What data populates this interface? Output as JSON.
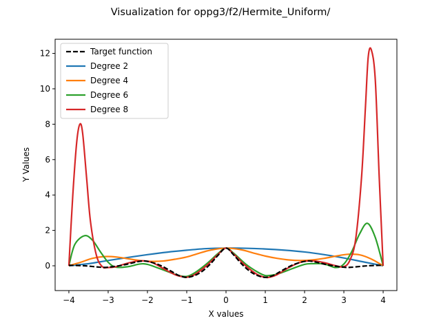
{
  "chart_data": {
    "type": "line",
    "title": "Visualization for oppg3/f2/Hermite_Uniform/",
    "xlabel": "X values",
    "ylabel": "Y Values",
    "xlim": [
      -4.35,
      4.35
    ],
    "ylim": [
      -1.4,
      12.8
    ],
    "xticks": [
      -4,
      -3,
      -2,
      -1,
      0,
      1,
      2,
      3,
      4
    ],
    "yticks": [
      0,
      2,
      4,
      6,
      8,
      10,
      12
    ],
    "grid": false,
    "legend_position": "upper-left",
    "series": [
      {
        "name": "Target function",
        "color": "#000000",
        "dash": "dashed",
        "x": [
          -4,
          -3.6,
          -3.2,
          -3,
          -2.6,
          -2.2,
          -2,
          -1.7,
          -1.4,
          -1.2,
          -1,
          -0.8,
          -0.6,
          -0.4,
          -0.2,
          0,
          0.2,
          0.4,
          0.6,
          0.8,
          1,
          1.2,
          1.4,
          1.7,
          2,
          2.2,
          2.6,
          3,
          3.2,
          3.6,
          4
        ],
        "y": [
          0.03,
          0.0,
          -0.08,
          -0.08,
          0.05,
          0.25,
          0.25,
          0.05,
          -0.3,
          -0.55,
          -0.65,
          -0.55,
          -0.3,
          0.1,
          0.6,
          1.0,
          0.6,
          0.1,
          -0.3,
          -0.55,
          -0.65,
          -0.55,
          -0.3,
          0.05,
          0.25,
          0.25,
          0.05,
          -0.08,
          -0.08,
          0.0,
          0.03
        ]
      },
      {
        "name": "Degree 2",
        "color": "#1f77b4",
        "dash": "solid",
        "x": [
          -4,
          -3.5,
          -3,
          -2.5,
          -2,
          -1.5,
          -1,
          -0.5,
          0,
          0.5,
          1,
          1.5,
          2,
          2.5,
          3,
          3.5,
          4
        ],
        "y": [
          0.0,
          0.12,
          0.3,
          0.47,
          0.63,
          0.77,
          0.88,
          0.97,
          1.0,
          0.99,
          0.95,
          0.88,
          0.78,
          0.63,
          0.44,
          0.22,
          0.0
        ]
      },
      {
        "name": "Degree 4",
        "color": "#ff7f0e",
        "dash": "solid",
        "x": [
          -4,
          -3.7,
          -3.4,
          -3.1,
          -2.8,
          -2.5,
          -2.2,
          -1.9,
          -1.6,
          -1.3,
          -1,
          -0.7,
          -0.4,
          0,
          0.4,
          0.7,
          1,
          1.3,
          1.6,
          1.9,
          2.2,
          2.5,
          2.8,
          3.1,
          3.4,
          3.7,
          4
        ],
        "y": [
          0.0,
          0.2,
          0.42,
          0.52,
          0.5,
          0.4,
          0.3,
          0.25,
          0.27,
          0.37,
          0.5,
          0.7,
          0.88,
          1.0,
          0.9,
          0.72,
          0.55,
          0.42,
          0.33,
          0.3,
          0.33,
          0.42,
          0.55,
          0.65,
          0.62,
          0.38,
          0.0
        ]
      },
      {
        "name": "Degree 6",
        "color": "#2ca02c",
        "dash": "solid",
        "x": [
          -4,
          -3.85,
          -3.6,
          -3.4,
          -3.2,
          -3,
          -2.8,
          -2.5,
          -2.2,
          -2,
          -1.7,
          -1.4,
          -1.2,
          -1,
          -0.8,
          -0.5,
          -0.2,
          0,
          0.2,
          0.5,
          0.8,
          1,
          1.2,
          1.4,
          1.7,
          2,
          2.2,
          2.5,
          2.8,
          3,
          3.2,
          3.4,
          3.6,
          3.8,
          4
        ],
        "y": [
          0.0,
          1.2,
          1.7,
          1.45,
          0.8,
          0.2,
          -0.08,
          -0.05,
          0.1,
          0.08,
          -0.15,
          -0.4,
          -0.55,
          -0.6,
          -0.4,
          0.1,
          0.7,
          1.0,
          0.7,
          0.1,
          -0.35,
          -0.55,
          -0.52,
          -0.4,
          -0.15,
          0.08,
          0.12,
          0.1,
          -0.1,
          0.1,
          0.8,
          1.8,
          2.4,
          1.6,
          0.0
        ]
      },
      {
        "name": "Degree 8",
        "color": "#d62728",
        "dash": "solid",
        "x": [
          -4,
          -3.9,
          -3.8,
          -3.72,
          -3.65,
          -3.55,
          -3.45,
          -3.3,
          -3.15,
          -3,
          -2.8,
          -2.5,
          -2.2,
          -1.9,
          -1.6,
          -1.3,
          -1.1,
          -1,
          -0.8,
          -0.5,
          -0.2,
          0,
          0.2,
          0.5,
          0.8,
          1,
          1.1,
          1.3,
          1.6,
          1.9,
          2.2,
          2.5,
          2.8,
          3,
          3.15,
          3.3,
          3.45,
          3.55,
          3.62,
          3.7,
          3.8,
          3.9,
          4
        ],
        "y": [
          0.0,
          4.0,
          7.0,
          8.0,
          7.5,
          5.0,
          2.5,
          0.6,
          -0.05,
          -0.1,
          -0.05,
          0.15,
          0.28,
          0.2,
          -0.15,
          -0.5,
          -0.62,
          -0.65,
          -0.5,
          0.0,
          0.65,
          1.0,
          0.65,
          0.0,
          -0.5,
          -0.65,
          -0.65,
          -0.5,
          -0.1,
          0.2,
          0.28,
          0.18,
          0.0,
          -0.05,
          0.3,
          1.5,
          5.0,
          9.0,
          11.8,
          12.2,
          10.5,
          5.0,
          0.0
        ]
      }
    ]
  }
}
